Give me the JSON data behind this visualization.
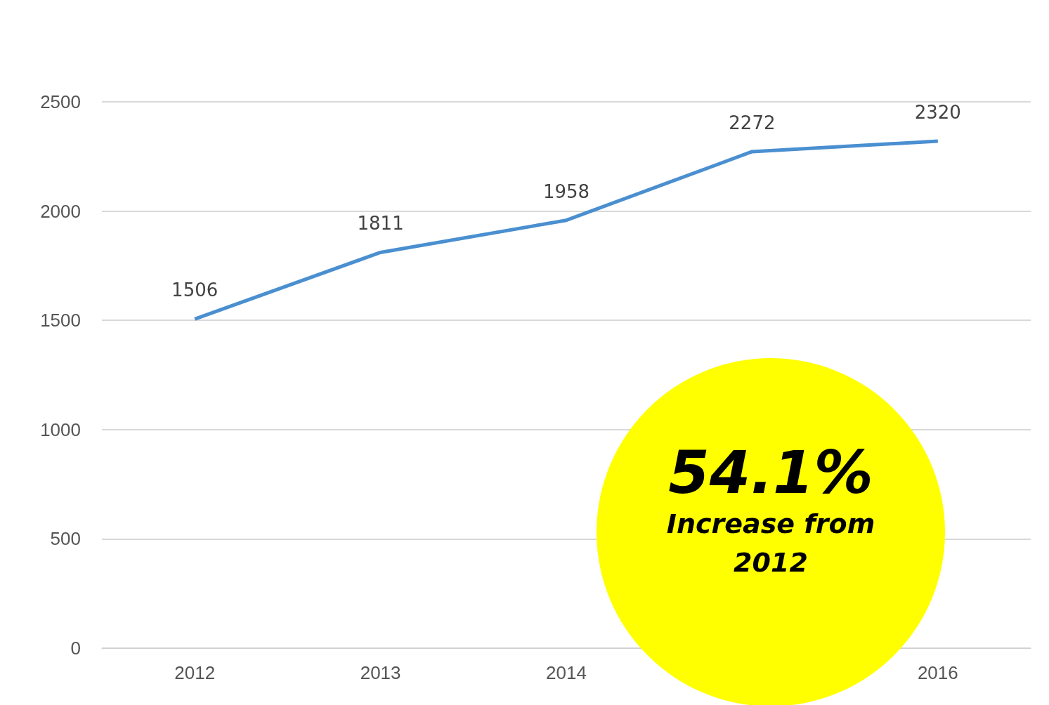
{
  "chart_data": {
    "type": "line",
    "categories": [
      "2012",
      "2013",
      "2014",
      null,
      "2016"
    ],
    "series": [
      {
        "color": "#4a8fd0",
        "values": [
          1506,
          1811,
          1958,
          2272,
          2320
        ]
      }
    ],
    "ylim": [
      0,
      2500
    ],
    "yticks": [
      0,
      500,
      1000,
      1500,
      2000,
      2500
    ],
    "grid": "y",
    "marker": "none",
    "line_style": "solid",
    "data_labels": true,
    "annotations": [
      "54.1%",
      "Increase from 2012"
    ]
  }
}
